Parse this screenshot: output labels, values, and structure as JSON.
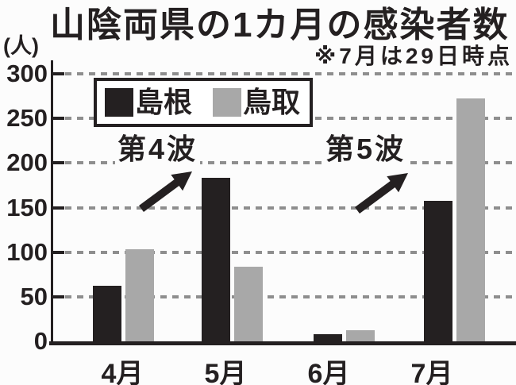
{
  "header": {
    "title": "山陰両県の1カ月の感染者数",
    "note": "※7月は29日時点"
  },
  "y_axis_unit": "(人)",
  "colors": {
    "shimane_bar": "#242021",
    "tottori_bar": "#a8a8a8",
    "gridline": "#8e8e8e",
    "text": "#242021",
    "background": "#fcfcfc"
  },
  "legend": {
    "items": [
      {
        "label": "島根",
        "color": "#242021"
      },
      {
        "label": "鳥取",
        "color": "#a8a8a8"
      }
    ]
  },
  "chart_data": {
    "type": "bar",
    "title": "山陰両県の1カ月の感染者数",
    "note": "※7月は29日時点",
    "ylabel": "(人)",
    "categories": [
      "4月",
      "5月",
      "6月",
      "7月"
    ],
    "series": [
      {
        "name": "島根",
        "color": "#242021",
        "values": [
          66,
          187,
          12,
          161
        ]
      },
      {
        "name": "鳥取",
        "color": "#a8a8a8",
        "values": [
          107,
          87,
          16,
          276
        ]
      }
    ],
    "ylim": [
      0,
      300
    ],
    "yticks": [
      0,
      50,
      100,
      150,
      200,
      250,
      300
    ],
    "grid": "horizontal-dashed",
    "legend_position": "top-left-inside",
    "annotations": [
      {
        "text": "第4波",
        "points_to": {
          "category": "5月",
          "series": "島根"
        }
      },
      {
        "text": "第5波",
        "points_to": {
          "category": "7月",
          "series": "島根"
        }
      }
    ]
  }
}
